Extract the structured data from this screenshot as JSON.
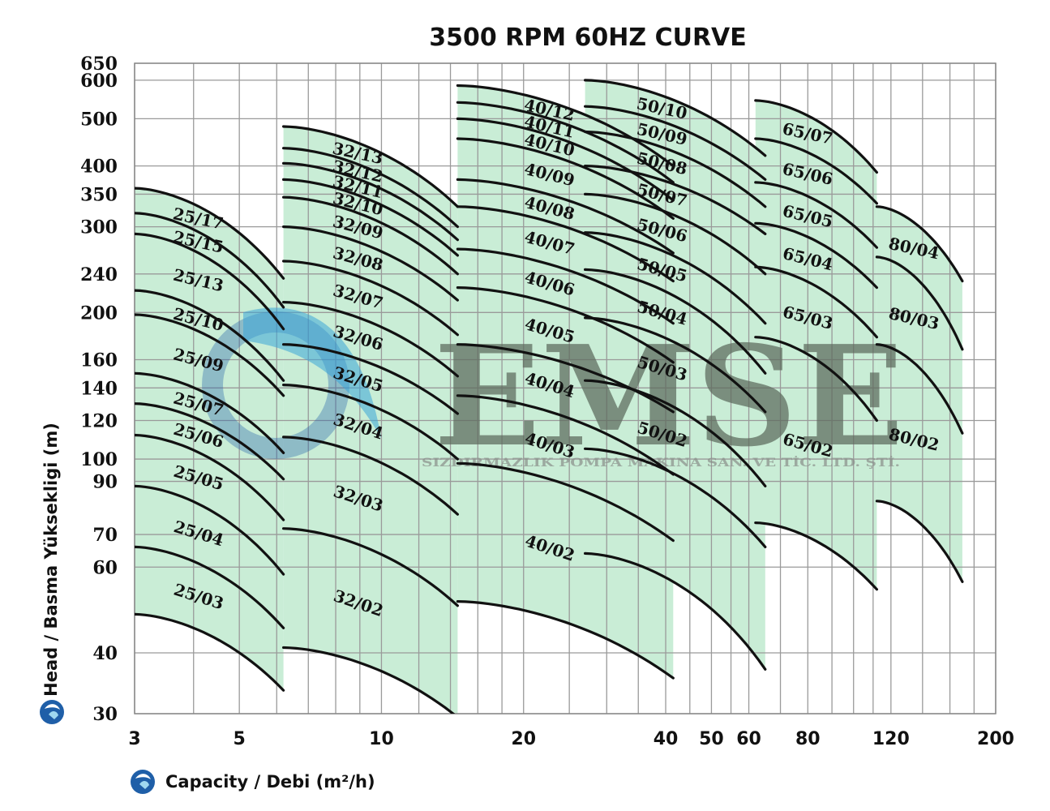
{
  "chart_data": {
    "type": "line",
    "title": "3500 RPM 60HZ CURVE",
    "xlabel": "Capacity / Debi (m²/h)",
    "ylabel": "Head / Basma Yüksekligi (m)",
    "xscale": "log",
    "yscale": "log",
    "xlim": [
      3,
      200
    ],
    "ylim": [
      30,
      650
    ],
    "x_ticks": [
      "3",
      "5",
      "10",
      "20",
      "40",
      "50",
      "60",
      "80",
      "120",
      "200"
    ],
    "y_ticks": [
      "650",
      "600",
      "500",
      "400",
      "350",
      "300",
      "240",
      "200",
      "160",
      "140",
      "120",
      "100",
      "90",
      "70",
      "60",
      "40",
      "30"
    ],
    "grid": true,
    "area_color": "#c9edd6",
    "curve_color": "#111111",
    "watermark": {
      "brand": "EMSE",
      "registered": "®",
      "subtitle": "SIZDIRMAZLIK POMPA MAKINA SAN. VE TİC. LTD. ŞTİ.",
      "color": "#5d6a5d",
      "accent": "#3aa6d9"
    },
    "groups": [
      {
        "name": "25",
        "xrange": [
          3,
          6.2
        ],
        "series": [
          {
            "name": "25/17",
            "y": [
              360,
              235
            ]
          },
          {
            "name": "25/15",
            "y": [
              320,
              205
            ]
          },
          {
            "name": "25/13",
            "y": [
              290,
              185
            ]
          },
          {
            "name": "25/10",
            "y": [
              222,
              145
            ]
          },
          {
            "name": "25/09",
            "y": [
              198,
              135
            ]
          },
          {
            "name": "25/07",
            "y": [
              150,
              103
            ]
          },
          {
            "name": "25/06",
            "y": [
              130,
              91
            ]
          },
          {
            "name": "25/05",
            "y": [
              112,
              75
            ]
          },
          {
            "name": "25/04",
            "y": [
              88,
              58
            ]
          },
          {
            "name": "25/03",
            "y": [
              66,
              45
            ]
          },
          {
            "name": "",
            "y": [
              48,
              33.5
            ]
          }
        ]
      },
      {
        "name": "32",
        "xrange": [
          6.2,
          14.5
        ],
        "series": [
          {
            "name": "32/13",
            "y": [
              482,
              330
            ]
          },
          {
            "name": "32/12",
            "y": [
              435,
              300
            ]
          },
          {
            "name": "32/11",
            "y": [
              405,
              282
            ]
          },
          {
            "name": "32/10",
            "y": [
              375,
              262
            ]
          },
          {
            "name": "32/09",
            "y": [
              345,
              240
            ]
          },
          {
            "name": "32/08",
            "y": [
              300,
              212
            ]
          },
          {
            "name": "32/07",
            "y": [
              255,
              180
            ]
          },
          {
            "name": "32/06",
            "y": [
              210,
              148
            ]
          },
          {
            "name": "32/05",
            "y": [
              172,
              124
            ]
          },
          {
            "name": "32/04",
            "y": [
              142,
              100
            ]
          },
          {
            "name": "32/03",
            "y": [
              111,
              77
            ]
          },
          {
            "name": "32/02",
            "y": [
              72,
              50
            ]
          },
          {
            "name": "",
            "y": [
              41,
              29.5
            ]
          }
        ]
      },
      {
        "name": "40",
        "xrange": [
          14.5,
          41.5
        ],
        "series": [
          {
            "name": "40/12",
            "y": [
              585,
              400
            ]
          },
          {
            "name": "40/11",
            "y": [
              540,
              370
            ]
          },
          {
            "name": "40/10",
            "y": [
              500,
              340
            ]
          },
          {
            "name": "40/09",
            "y": [
              455,
              312
            ]
          },
          {
            "name": "40/08",
            "y": [
              375,
              265
            ]
          },
          {
            "name": "40/07",
            "y": [
              330,
              232
            ]
          },
          {
            "name": "40/06",
            "y": [
              270,
              190
            ]
          },
          {
            "name": "40/05",
            "y": [
              225,
              158
            ]
          },
          {
            "name": "40/04",
            "y": [
              172,
              125
            ]
          },
          {
            "name": "40/03",
            "y": [
              135,
              93
            ]
          },
          {
            "name": "40/02",
            "y": [
              98,
              68
            ]
          },
          {
            "name": "",
            "y": [
              51,
              35.5
            ]
          }
        ]
      },
      {
        "name": "50",
        "xrange": [
          27,
          65
        ],
        "series": [
          {
            "name": "50/10",
            "y": [
              600,
              420
            ]
          },
          {
            "name": "50/09",
            "y": [
              530,
              375
            ]
          },
          {
            "name": "50/08",
            "y": [
              470,
              330
            ]
          },
          {
            "name": "50/07",
            "y": [
              400,
              290
            ]
          },
          {
            "name": "50/06",
            "y": [
              350,
              240
            ]
          },
          {
            "name": "50/05",
            "y": [
              292,
              190
            ]
          },
          {
            "name": "50/04",
            "y": [
              245,
              150
            ]
          },
          {
            "name": "50/03",
            "y": [
              195,
              125
            ]
          },
          {
            "name": "50/02",
            "y": [
              145,
              88
            ]
          },
          {
            "name": "",
            "y": [
              105,
              66
            ]
          },
          {
            "name": "",
            "y": [
              64,
              37
            ]
          }
        ]
      },
      {
        "name": "65",
        "xrange": [
          62,
          112
        ],
        "series": [
          {
            "name": "65/07",
            "y": [
              545,
              388
            ]
          },
          {
            "name": "65/06",
            "y": [
              455,
              335
            ]
          },
          {
            "name": "65/05",
            "y": [
              370,
              272
            ]
          },
          {
            "name": "65/04",
            "y": [
              305,
              225
            ]
          },
          {
            "name": "65/03",
            "y": [
              248,
              178
            ]
          },
          {
            "name": "65/02",
            "y": [
              178,
              120
            ]
          },
          {
            "name": "",
            "y": [
              74,
              54
            ]
          }
        ]
      },
      {
        "name": "80",
        "xrange": [
          112,
          170
        ],
        "series": [
          {
            "name": "80/04",
            "y": [
              330,
              232
            ]
          },
          {
            "name": "80/03",
            "y": [
              260,
              168
            ]
          },
          {
            "name": "80/02",
            "y": [
              172,
              113
            ]
          },
          {
            "name": "",
            "y": [
              82,
              56
            ]
          }
        ]
      }
    ]
  }
}
